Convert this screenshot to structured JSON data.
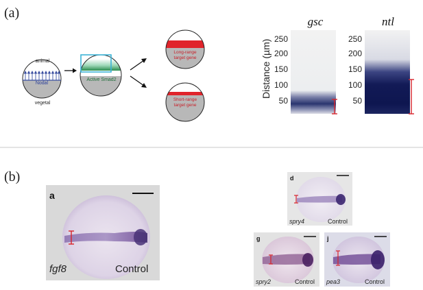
{
  "panel_a": {
    "label": "(a)",
    "diagram": {
      "animal": "animal",
      "vegetal": "vegetal",
      "nodal": "Nodal",
      "active_smad2": "Active Smad2",
      "long_range_1": "Long-range",
      "long_range_2": "target gene",
      "short_range_1": "Short-range",
      "short_range_2": "target gene"
    },
    "plot": {
      "ylabel": "Distance (µm)",
      "ticks": [
        "250",
        "200",
        "150",
        "100",
        "50"
      ],
      "gene1": "gsc",
      "gene2": "ntl",
      "colors": {
        "stain": "#1e2a6a",
        "bracket": "#d9232a"
      }
    }
  },
  "panel_b": {
    "label": "(b)",
    "main": {
      "letter": "a",
      "gene": "fgf8",
      "condition": "Control"
    },
    "d": {
      "letter": "d",
      "gene": "spry4",
      "condition": "Control"
    },
    "g": {
      "letter": "g",
      "gene": "spry2",
      "condition": "Control"
    },
    "j": {
      "letter": "j",
      "gene": "pea3",
      "condition": "Control"
    }
  }
}
